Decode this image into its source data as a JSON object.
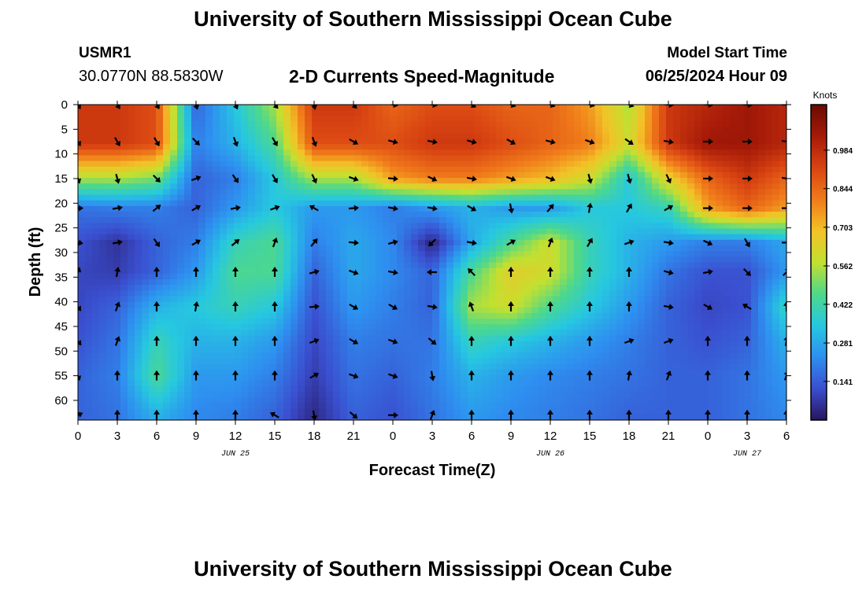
{
  "page": {
    "title": "University of Southern Mississippi Ocean Cube",
    "station": "USMR1",
    "coords": "30.0770N  88.5830W",
    "subtitle": "2-D Currents Speed-Magnitude",
    "model_label": "Model Start Time",
    "model_time": "06/25/2024 Hour 09",
    "footer_title": "University of Southern Mississippi Ocean Cube"
  },
  "chart_data": {
    "type": "heatmap",
    "xlabel": "Forecast Time(Z)",
    "ylabel": "Depth (ft)",
    "x_tick_labels": [
      "0",
      "3",
      "6",
      "9",
      "12",
      "15",
      "18",
      "21",
      "0",
      "3",
      "6",
      "9",
      "12",
      "15",
      "18",
      "21",
      "0",
      "3",
      "6"
    ],
    "date_labels": [
      {
        "label": "JUN 25",
        "at_tick": 4
      },
      {
        "label": "JUN 26",
        "at_tick": 12
      },
      {
        "label": "JUN 27",
        "at_tick": 17
      }
    ],
    "x_range_hours": [
      0,
      54
    ],
    "y_ticks": [
      0,
      5,
      10,
      15,
      20,
      25,
      30,
      35,
      40,
      45,
      50,
      55,
      60
    ],
    "y_range_ft": [
      0,
      64
    ],
    "colorbar": {
      "title": "Knots",
      "ticks": [
        0.141,
        0.281,
        0.422,
        0.562,
        0.703,
        0.844,
        0.984
      ],
      "range": [
        0,
        1.15
      ],
      "colors": [
        "#28155e",
        "#3a4fcf",
        "#2e8ff0",
        "#26c8e0",
        "#4ed88a",
        "#c2e030",
        "#f3c227",
        "#f07a1a",
        "#d94412",
        "#a61a08",
        "#6a0a02"
      ]
    },
    "sample_hours": [
      0,
      3,
      6,
      9,
      12,
      15,
      18,
      21,
      24,
      27,
      30,
      33,
      36,
      39,
      42,
      45,
      48,
      51,
      54
    ],
    "sample_depths_ft": [
      0,
      8,
      15,
      21,
      28,
      34,
      41,
      48,
      55,
      63
    ],
    "speed_knots": [
      [
        0.95,
        0.95,
        0.9,
        0.15,
        0.35,
        0.55,
        0.95,
        0.95,
        0.85,
        0.9,
        0.9,
        0.85,
        0.85,
        0.75,
        0.55,
        0.95,
        1.0,
        1.05,
        1.0
      ],
      [
        0.95,
        0.95,
        0.9,
        0.2,
        0.3,
        0.45,
        0.9,
        0.9,
        0.9,
        0.95,
        0.95,
        0.9,
        0.85,
        0.8,
        0.6,
        0.95,
        1.05,
        1.05,
        1.0
      ],
      [
        0.55,
        0.55,
        0.5,
        0.15,
        0.2,
        0.35,
        0.55,
        0.55,
        0.75,
        0.8,
        0.8,
        0.75,
        0.7,
        0.6,
        0.35,
        0.65,
        0.85,
        0.95,
        0.85
      ],
      [
        0.18,
        0.2,
        0.2,
        0.15,
        0.25,
        0.35,
        0.25,
        0.25,
        0.2,
        0.25,
        0.3,
        0.25,
        0.25,
        0.35,
        0.35,
        0.4,
        0.75,
        0.85,
        0.75
      ],
      [
        0.12,
        0.06,
        0.15,
        0.2,
        0.4,
        0.45,
        0.2,
        0.28,
        0.22,
        0.03,
        0.28,
        0.45,
        0.6,
        0.4,
        0.3,
        0.25,
        0.2,
        0.2,
        0.28
      ],
      [
        0.1,
        0.08,
        0.15,
        0.25,
        0.45,
        0.45,
        0.15,
        0.28,
        0.22,
        0.15,
        0.45,
        0.65,
        0.6,
        0.4,
        0.3,
        0.18,
        0.12,
        0.12,
        0.25
      ],
      [
        0.1,
        0.15,
        0.3,
        0.35,
        0.4,
        0.35,
        0.12,
        0.25,
        0.2,
        0.15,
        0.55,
        0.6,
        0.45,
        0.35,
        0.25,
        0.15,
        0.1,
        0.12,
        0.4
      ],
      [
        0.12,
        0.18,
        0.4,
        0.3,
        0.3,
        0.25,
        0.1,
        0.2,
        0.18,
        0.18,
        0.4,
        0.35,
        0.3,
        0.25,
        0.2,
        0.15,
        0.12,
        0.15,
        0.3
      ],
      [
        0.15,
        0.2,
        0.45,
        0.25,
        0.25,
        0.2,
        0.08,
        0.18,
        0.15,
        0.2,
        0.3,
        0.25,
        0.22,
        0.2,
        0.18,
        0.15,
        0.15,
        0.18,
        0.25
      ],
      [
        0.15,
        0.18,
        0.3,
        0.22,
        0.2,
        0.15,
        0.04,
        0.15,
        0.12,
        0.18,
        0.25,
        0.22,
        0.2,
        0.18,
        0.15,
        0.15,
        0.15,
        0.18,
        0.22
      ]
    ],
    "arrow_depths_ft": [
      0,
      7.5,
      15,
      21,
      28,
      34,
      41,
      48,
      55,
      63
    ],
    "arrow_angles_deg": [
      [
        150,
        150,
        150,
        165,
        155,
        140,
        170,
        140,
        100,
        100,
        120,
        110,
        110,
        105,
        110,
        95,
        95,
        95,
        90
      ],
      [
        150,
        150,
        150,
        135,
        160,
        150,
        160,
        120,
        105,
        100,
        105,
        120,
        105,
        110,
        125,
        100,
        90,
        90,
        100
      ],
      [
        160,
        165,
        135,
        70,
        145,
        150,
        155,
        110,
        95,
        115,
        100,
        110,
        110,
        165,
        165,
        155,
        90,
        90,
        100
      ],
      [
        90,
        80,
        50,
        60,
        80,
        70,
        300,
        85,
        100,
        100,
        120,
        170,
        40,
        10,
        30,
        60,
        90,
        90,
        90
      ],
      [
        100,
        80,
        145,
        60,
        50,
        20,
        40,
        95,
        75,
        225,
        100,
        60,
        20,
        30,
        70,
        100,
        115,
        150,
        90
      ],
      [
        20,
        10,
        0,
        0,
        0,
        0,
        75,
        110,
        100,
        270,
        315,
        0,
        0,
        0,
        0,
        105,
        80,
        135,
        45
      ],
      [
        145,
        20,
        0,
        10,
        0,
        0,
        85,
        120,
        120,
        100,
        340,
        0,
        0,
        0,
        0,
        100,
        120,
        300,
        0
      ],
      [
        140,
        20,
        0,
        0,
        0,
        0,
        70,
        120,
        110,
        130,
        0,
        0,
        0,
        0,
        70,
        70,
        0,
        0,
        10
      ],
      [
        160,
        0,
        0,
        0,
        0,
        0,
        60,
        110,
        110,
        170,
        0,
        0,
        0,
        0,
        10,
        20,
        0,
        0,
        20
      ],
      [
        65,
        0,
        0,
        0,
        0,
        300,
        170,
        130,
        90,
        20,
        0,
        0,
        0,
        0,
        0,
        0,
        0,
        0,
        0
      ]
    ]
  }
}
